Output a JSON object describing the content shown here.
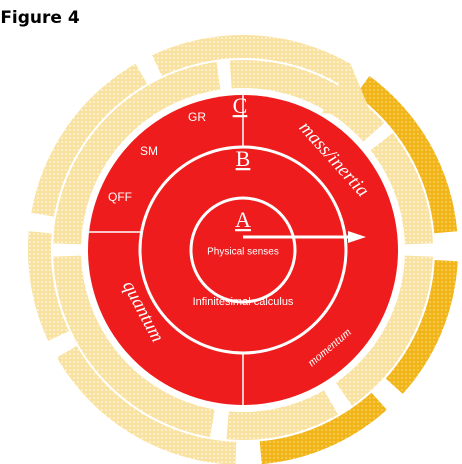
{
  "title": "Figure 4",
  "center": {
    "label": "A",
    "caption": "Physical senses"
  },
  "middle": {
    "label": "B",
    "caption": "Infinitesimal calculus"
  },
  "outer": {
    "label": "C",
    "items": [
      "GR",
      "SM",
      "QFF"
    ]
  },
  "sectors": [
    "mass/inertia",
    "quantum",
    "momentum"
  ]
}
